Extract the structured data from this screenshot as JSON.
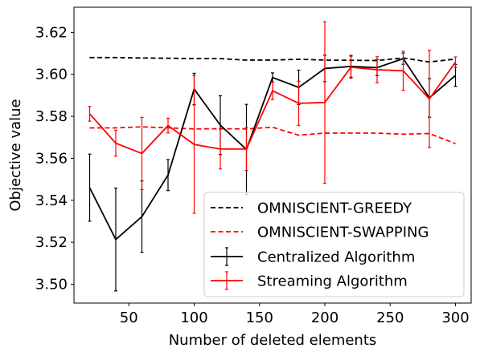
{
  "chart_data": {
    "type": "line",
    "title": "",
    "xlabel": "Number of deleted elements",
    "ylabel": "Objective value",
    "xlim": [
      8,
      312
    ],
    "ylim": [
      3.491,
      3.632
    ],
    "xticks": [
      50,
      100,
      150,
      200,
      250,
      300
    ],
    "yticks": [
      3.5,
      3.52,
      3.54,
      3.56,
      3.58,
      3.6,
      3.62
    ],
    "ytick_labels": [
      "3.50",
      "3.52",
      "3.54",
      "3.56",
      "3.58",
      "3.60",
      "3.62"
    ],
    "x": [
      20,
      40,
      60,
      80,
      100,
      120,
      140,
      160,
      180,
      200,
      220,
      240,
      260,
      280,
      300
    ],
    "grid": false,
    "legend_position": "lower-right",
    "series": [
      {
        "name": "OMNISCIENT-GREEDY",
        "style": "dashed",
        "color": "#000000",
        "values": [
          3.608,
          3.608,
          3.6078,
          3.6077,
          3.6075,
          3.6075,
          3.6068,
          3.6068,
          3.6072,
          3.6068,
          3.6067,
          3.6066,
          3.6078,
          3.6059,
          3.6073
        ]
      },
      {
        "name": "OMNISCIENT-SWAPPING",
        "style": "dashed",
        "color": "#ff0000",
        "values": [
          3.5745,
          3.5745,
          3.575,
          3.5745,
          3.574,
          3.5741,
          3.574,
          3.5748,
          3.571,
          3.572,
          3.572,
          3.572,
          3.5715,
          3.5718,
          3.567
        ]
      },
      {
        "name": "Centralized Algorithm",
        "style": "solid",
        "color": "#000000",
        "values": [
          3.546,
          3.5213,
          3.5322,
          3.552,
          3.593,
          3.5758,
          3.5642,
          3.5985,
          3.5938,
          3.6028,
          3.6038,
          3.6032,
          3.6075,
          3.5888,
          3.5995
        ],
        "errors": [
          0.016,
          0.0245,
          0.017,
          0.0074,
          0.0075,
          0.014,
          0.0215,
          0.0022,
          0.0082,
          0.0063,
          0.0052,
          0.0038,
          0.0027,
          0.0092,
          0.0052
        ]
      },
      {
        "name": "Streaming Algorithm",
        "style": "solid",
        "color": "#ff0000",
        "values": [
          3.5812,
          3.5672,
          3.5623,
          3.5756,
          3.5666,
          3.5644,
          3.5644,
          3.5922,
          3.5862,
          3.5866,
          3.6034,
          3.6022,
          3.6017,
          3.5883,
          3.6058
        ],
        "errors": [
          0.0035,
          0.0062,
          0.0172,
          0.0035,
          0.0328,
          0.0095,
          0.0102,
          0.0042,
          0.0105,
          0.0385,
          0.0052,
          0.0062,
          0.0093,
          0.0232,
          0.0025
        ]
      }
    ]
  }
}
